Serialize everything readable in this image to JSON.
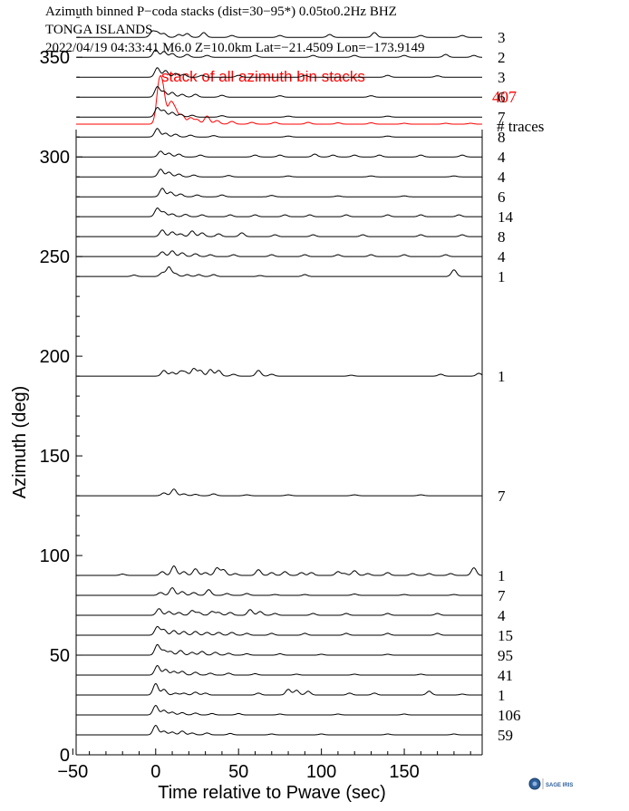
{
  "header": {
    "line1": "Azimuth binned P−coda stacks (dist=30−95*)  0.05to0.2Hz  BHZ",
    "line2": "TONGA ISLANDS",
    "line3": "2022/04/19  04:33:41  M6.0  Z=10.0km Lat=−21.4509 Lon=−173.9149"
  },
  "colors": {
    "stack_red": "#ff0000",
    "trace_black": "#000000"
  },
  "logo": {
    "icon": "sage-logo-icon",
    "text": "SAGE IRIS"
  },
  "chart_data": {
    "type": "line",
    "title": "",
    "xlabel": "Time relative to Pwave (sec)",
    "ylabel": "Azimuth (deg)",
    "xlim": [
      -48,
      197
    ],
    "ylim": [
      0,
      390
    ],
    "xticks": [
      -50,
      0,
      50,
      100,
      150
    ],
    "xtick_labels": [
      "−50",
      "0",
      "50",
      "100",
      "150"
    ],
    "yticks": [
      0,
      50,
      100,
      150,
      200,
      250,
      300,
      350
    ],
    "yticks_minor": [
      10,
      20,
      30,
      40,
      60,
      70,
      80,
      90,
      110,
      120,
      130,
      140,
      160,
      170,
      180,
      190,
      210,
      220,
      230,
      240,
      260,
      270,
      280,
      290,
      310,
      320,
      330,
      340,
      360,
      370,
      380
    ],
    "grid": false,
    "stack": {
      "label": "stack of all azimuth bin stacks",
      "count": "407",
      "color": "#ff0000",
      "peaks": [
        [
          2,
          40
        ],
        [
          4.5,
          32
        ],
        [
          9,
          22
        ],
        [
          12,
          14
        ],
        [
          16,
          10
        ],
        [
          21,
          7
        ],
        [
          25,
          5
        ],
        [
          31,
          9
        ],
        [
          37,
          4
        ],
        [
          46,
          3
        ],
        [
          58,
          2
        ],
        [
          72,
          2
        ],
        [
          92,
          2
        ],
        [
          110,
          1.5
        ],
        [
          130,
          1.5
        ],
        [
          150,
          1
        ],
        [
          175,
          1
        ],
        [
          190,
          1
        ]
      ]
    },
    "count_header": "# traces",
    "series": [
      {
        "azimuth": 360,
        "count": "3",
        "peaks": [
          [
            -2,
            6
          ],
          [
            1,
            5
          ],
          [
            5,
            4
          ],
          [
            14,
            3
          ],
          [
            19,
            4
          ],
          [
            29,
            5
          ],
          [
            46,
            2
          ],
          [
            75,
            2
          ],
          [
            105,
            3
          ],
          [
            132,
            5
          ],
          [
            160,
            2
          ],
          [
            185,
            2
          ]
        ]
      },
      {
        "azimuth": 350,
        "count": "2",
        "peaks": [
          [
            0,
            8
          ],
          [
            5,
            6
          ],
          [
            10,
            4
          ],
          [
            19,
            3
          ],
          [
            31,
            2
          ],
          [
            60,
            2
          ],
          [
            95,
            2
          ],
          [
            120,
            2
          ],
          [
            150,
            2
          ],
          [
            175,
            3
          ],
          [
            192,
            2
          ]
        ]
      },
      {
        "azimuth": 340,
        "count": "3",
        "peaks": [
          [
            1,
            10
          ],
          [
            6,
            7
          ],
          [
            12,
            4
          ],
          [
            17,
            3
          ],
          [
            28,
            2
          ],
          [
            50,
            2
          ],
          [
            90,
            2
          ],
          [
            140,
            2
          ],
          [
            170,
            1.5
          ]
        ]
      },
      {
        "azimuth": 330,
        "count": "6",
        "peaks": [
          [
            1,
            11
          ],
          [
            5,
            6
          ],
          [
            10,
            5
          ],
          [
            16,
            3
          ],
          [
            24,
            3
          ],
          [
            40,
            2
          ],
          [
            75,
            1.5
          ],
          [
            130,
            1.5
          ]
        ]
      },
      {
        "azimuth": 320,
        "count": "7",
        "peaks": [
          [
            1,
            10
          ],
          [
            5,
            7
          ],
          [
            10,
            5
          ],
          [
            15,
            3
          ],
          [
            22,
            2
          ],
          [
            40,
            1.5
          ],
          [
            80,
            1
          ],
          [
            140,
            1
          ]
        ]
      },
      {
        "azimuth": 310,
        "count": "8",
        "peaks": [
          [
            1,
            9
          ],
          [
            6,
            4
          ],
          [
            12,
            3
          ],
          [
            21,
            2
          ],
          [
            35,
            1.5
          ],
          [
            80,
            1
          ],
          [
            140,
            1
          ]
        ]
      },
      {
        "azimuth": 300,
        "count": "4",
        "peaks": [
          [
            3,
            6
          ],
          [
            8,
            4
          ],
          [
            14,
            3
          ],
          [
            27,
            2
          ],
          [
            60,
            2
          ],
          [
            75,
            2
          ],
          [
            96,
            3
          ],
          [
            107,
            2
          ],
          [
            120,
            2
          ],
          [
            135,
            2
          ],
          [
            160,
            2
          ],
          [
            185,
            2
          ]
        ]
      },
      {
        "azimuth": 290,
        "count": "4",
        "peaks": [
          [
            3,
            8
          ],
          [
            8,
            5
          ],
          [
            14,
            3
          ],
          [
            23,
            2
          ],
          [
            44,
            1.5
          ],
          [
            80,
            1
          ],
          [
            130,
            1
          ],
          [
            180,
            1
          ]
        ]
      },
      {
        "azimuth": 280,
        "count": "6",
        "peaks": [
          [
            4,
            9
          ],
          [
            9,
            5
          ],
          [
            15,
            3
          ],
          [
            25,
            2
          ],
          [
            40,
            2
          ],
          [
            70,
            1.5
          ],
          [
            110,
            1
          ],
          [
            150,
            1
          ]
        ]
      },
      {
        "azimuth": 270,
        "count": "14",
        "peaks": [
          [
            1,
            9
          ],
          [
            5,
            5
          ],
          [
            10,
            3
          ],
          [
            18,
            2.5
          ],
          [
            28,
            2
          ],
          [
            45,
            2
          ],
          [
            60,
            2
          ],
          [
            78,
            2
          ],
          [
            93,
            2
          ],
          [
            115,
            2
          ],
          [
            140,
            2
          ],
          [
            160,
            2
          ],
          [
            183,
            2
          ]
        ]
      },
      {
        "azimuth": 260,
        "count": "8",
        "peaks": [
          [
            4,
            7
          ],
          [
            10,
            5
          ],
          [
            15,
            3
          ],
          [
            22,
            6
          ],
          [
            28,
            4
          ],
          [
            38,
            3
          ],
          [
            52,
            4
          ],
          [
            72,
            2
          ],
          [
            95,
            2
          ],
          [
            125,
            2
          ],
          [
            160,
            2
          ],
          [
            185,
            2
          ]
        ]
      },
      {
        "azimuth": 250,
        "count": "4",
        "peaks": [
          [
            4,
            5
          ],
          [
            10,
            6
          ],
          [
            16,
            4
          ],
          [
            24,
            3
          ],
          [
            33,
            2
          ],
          [
            47,
            2
          ],
          [
            70,
            2
          ],
          [
            90,
            2
          ],
          [
            110,
            2
          ],
          [
            130,
            2
          ],
          [
            150,
            2
          ],
          [
            175,
            2
          ]
        ]
      },
      {
        "azimuth": 240,
        "count": "1",
        "peaks": [
          [
            -13,
            1.5
          ],
          [
            4,
            4
          ],
          [
            8,
            10
          ],
          [
            12,
            3
          ],
          [
            19,
            2
          ],
          [
            26,
            2
          ],
          [
            35,
            2
          ],
          [
            63,
            1
          ],
          [
            90,
            2
          ],
          [
            180,
            7
          ]
        ]
      },
      {
        "azimuth": 190,
        "count": "1",
        "peaks": [
          [
            5,
            6
          ],
          [
            10,
            4
          ],
          [
            15,
            5
          ],
          [
            18,
            4
          ],
          [
            23,
            8
          ],
          [
            27,
            6
          ],
          [
            33,
            7
          ],
          [
            38,
            6
          ],
          [
            47,
            2
          ],
          [
            62,
            6
          ],
          [
            70,
            2
          ],
          [
            118,
            1
          ],
          [
            172,
            2
          ],
          [
            195,
            3
          ]
        ]
      },
      {
        "azimuth": 130,
        "count": "7",
        "peaks": [
          [
            5,
            3
          ],
          [
            11,
            7
          ],
          [
            17,
            2
          ],
          [
            24,
            1.5
          ],
          [
            35,
            2
          ],
          [
            55,
            1
          ],
          [
            80,
            1
          ],
          [
            120,
            1
          ],
          [
            160,
            1
          ]
        ]
      },
      {
        "azimuth": 90,
        "count": "1",
        "peaks": [
          [
            -20,
            1.5
          ],
          [
            4,
            4
          ],
          [
            11,
            10
          ],
          [
            17,
            4
          ],
          [
            24,
            7
          ],
          [
            30,
            3
          ],
          [
            37,
            8
          ],
          [
            41,
            6
          ],
          [
            48,
            2
          ],
          [
            62,
            6
          ],
          [
            70,
            3
          ],
          [
            78,
            4
          ],
          [
            88,
            3
          ],
          [
            94,
            3
          ],
          [
            110,
            4
          ],
          [
            114,
            2
          ],
          [
            120,
            5
          ],
          [
            128,
            2
          ],
          [
            140,
            3
          ],
          [
            155,
            2
          ],
          [
            165,
            2
          ],
          [
            178,
            2
          ],
          [
            192,
            8
          ]
        ]
      },
      {
        "azimuth": 80,
        "count": "7",
        "peaks": [
          [
            3,
            3
          ],
          [
            10,
            8
          ],
          [
            16,
            4
          ],
          [
            23,
            3
          ],
          [
            32,
            6
          ],
          [
            43,
            2
          ],
          [
            55,
            2
          ],
          [
            72,
            1
          ],
          [
            90,
            1
          ],
          [
            120,
            1.5
          ],
          [
            150,
            1
          ],
          [
            180,
            1
          ]
        ]
      },
      {
        "azimuth": 70,
        "count": "4",
        "peaks": [
          [
            2,
            7
          ],
          [
            8,
            4
          ],
          [
            14,
            3
          ],
          [
            22,
            5
          ],
          [
            26,
            3
          ],
          [
            34,
            4
          ],
          [
            38,
            3
          ],
          [
            45,
            3
          ],
          [
            57,
            6
          ],
          [
            63,
            4
          ],
          [
            72,
            2
          ],
          [
            95,
            2
          ],
          [
            115,
            2
          ],
          [
            140,
            2
          ],
          [
            170,
            2
          ]
        ]
      },
      {
        "azimuth": 60,
        "count": "15",
        "peaks": [
          [
            1,
            9
          ],
          [
            5,
            6
          ],
          [
            11,
            5
          ],
          [
            17,
            4
          ],
          [
            24,
            4
          ],
          [
            31,
            3
          ],
          [
            38,
            3
          ],
          [
            46,
            3
          ],
          [
            55,
            2
          ],
          [
            70,
            2
          ],
          [
            90,
            2
          ],
          [
            115,
            2
          ],
          [
            140,
            2
          ],
          [
            170,
            2
          ]
        ]
      },
      {
        "azimuth": 50,
        "count": "95",
        "peaks": [
          [
            1,
            11
          ],
          [
            5,
            5
          ],
          [
            9,
            4
          ],
          [
            15,
            5
          ],
          [
            22,
            3
          ],
          [
            28,
            4
          ],
          [
            36,
            3
          ],
          [
            44,
            2
          ],
          [
            55,
            1.5
          ],
          [
            75,
            1.5
          ],
          [
            100,
            1
          ],
          [
            140,
            1
          ]
        ]
      },
      {
        "azimuth": 40,
        "count": "41",
        "peaks": [
          [
            1,
            10
          ],
          [
            6,
            6
          ],
          [
            11,
            4
          ],
          [
            16,
            4
          ],
          [
            24,
            3
          ],
          [
            33,
            2
          ],
          [
            44,
            2
          ],
          [
            60,
            1.5
          ],
          [
            85,
            1
          ],
          [
            120,
            1
          ],
          [
            160,
            1
          ]
        ]
      },
      {
        "azimuth": 30,
        "count": "1",
        "peaks": [
          [
            0,
            12
          ],
          [
            5,
            6
          ],
          [
            12,
            2
          ],
          [
            17,
            2
          ],
          [
            24,
            3
          ],
          [
            30,
            2
          ],
          [
            62,
            2
          ],
          [
            80,
            6
          ],
          [
            85,
            5
          ],
          [
            92,
            4
          ],
          [
            117,
            2
          ],
          [
            132,
            2
          ],
          [
            165,
            4
          ],
          [
            185,
            1
          ]
        ]
      },
      {
        "azimuth": 20,
        "count": "106",
        "peaks": [
          [
            0,
            10
          ],
          [
            5,
            5
          ],
          [
            10,
            3
          ],
          [
            16,
            2.5
          ],
          [
            24,
            2
          ],
          [
            34,
            1.5
          ],
          [
            50,
            1.5
          ],
          [
            75,
            1
          ],
          [
            110,
            1
          ],
          [
            150,
            1
          ]
        ]
      },
      {
        "azimuth": 10,
        "count": "59",
        "peaks": [
          [
            0,
            10
          ],
          [
            5,
            4
          ],
          [
            10,
            3
          ],
          [
            16,
            4
          ],
          [
            22,
            2
          ],
          [
            31,
            2
          ],
          [
            45,
            1.5
          ],
          [
            70,
            1
          ],
          [
            100,
            1
          ],
          [
            140,
            1
          ],
          [
            180,
            1
          ]
        ]
      }
    ]
  }
}
